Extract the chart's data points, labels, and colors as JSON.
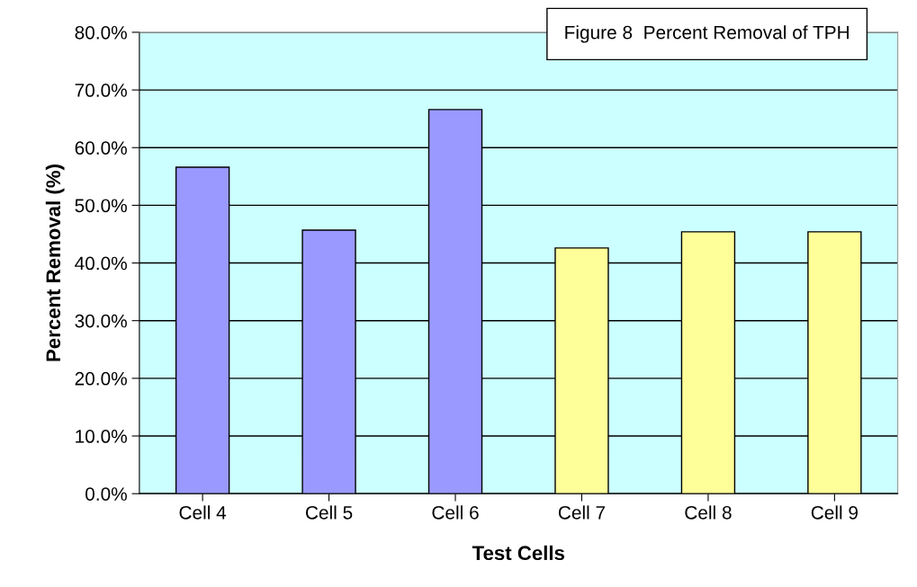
{
  "chart_data": {
    "type": "bar",
    "title": "Figure 8  Percent Removal of TPH",
    "xlabel": "Test Cells",
    "ylabel": "Percent Removal (%)",
    "categories": [
      "Cell 4",
      "Cell 5",
      "Cell 6",
      "Cell 7",
      "Cell 8",
      "Cell 9"
    ],
    "values": [
      56.6,
      45.7,
      66.6,
      42.6,
      45.4,
      45.4
    ],
    "colors": [
      "#9999ff",
      "#9999ff",
      "#9999ff",
      "#ffff99",
      "#ffff99",
      "#ffff99"
    ],
    "ylim": [
      0,
      80
    ],
    "yticks": [
      {
        "value": 0,
        "label": "0.0%"
      },
      {
        "value": 10,
        "label": "10.0%"
      },
      {
        "value": 20,
        "label": "20.0%"
      },
      {
        "value": 30,
        "label": "30.0%"
      },
      {
        "value": 40,
        "label": "40.0%"
      },
      {
        "value": 50,
        "label": "50.0%"
      },
      {
        "value": 60,
        "label": "60.0%"
      },
      {
        "value": 70,
        "label": "70.0%"
      },
      {
        "value": 80,
        "label": "80.0%"
      }
    ],
    "grid": "y",
    "legend": false
  }
}
